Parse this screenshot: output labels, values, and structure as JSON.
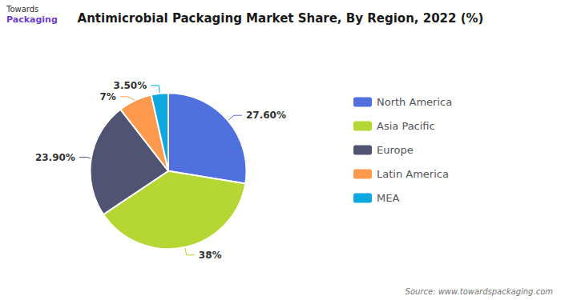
{
  "chart_data": {
    "type": "pie",
    "title": "Antimicrobial Packaging Market Share, By Region, 2022 (%)",
    "categories": [
      "North America",
      "Asia Pacific",
      "Europe",
      "Latin America",
      "MEA"
    ],
    "values": [
      27.6,
      38.0,
      23.9,
      7.0,
      3.5
    ],
    "value_labels": [
      "27.60%",
      "38%",
      "23.90%",
      "7%",
      "3.50%"
    ],
    "data_labels": true,
    "legend": "right",
    "annotations": [
      "Source: www.towardspackaging.com",
      "Towards",
      "Packaging"
    ]
  }
}
